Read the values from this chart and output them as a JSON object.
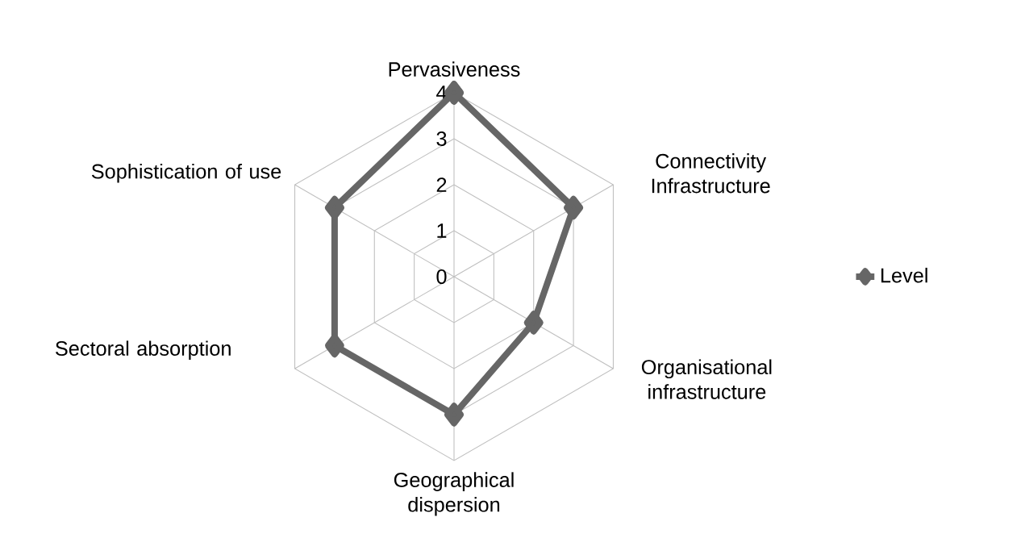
{
  "chart_data": {
    "type": "radar",
    "categories": [
      "Pervasiveness",
      "Connectivity Infrastructure",
      "Organisational infrastructure",
      "Geographical dispersion",
      "Sectoral absorption",
      "Sophistication of use"
    ],
    "series": [
      {
        "name": "Level",
        "color": "#666666",
        "values": [
          4,
          3,
          2,
          3,
          3,
          3
        ]
      }
    ],
    "ylim": [
      0,
      4
    ],
    "yticks": [
      0,
      1,
      2,
      3,
      4
    ],
    "grid": true,
    "legend": "right",
    "marker": "diamond",
    "line_style": "solid"
  }
}
